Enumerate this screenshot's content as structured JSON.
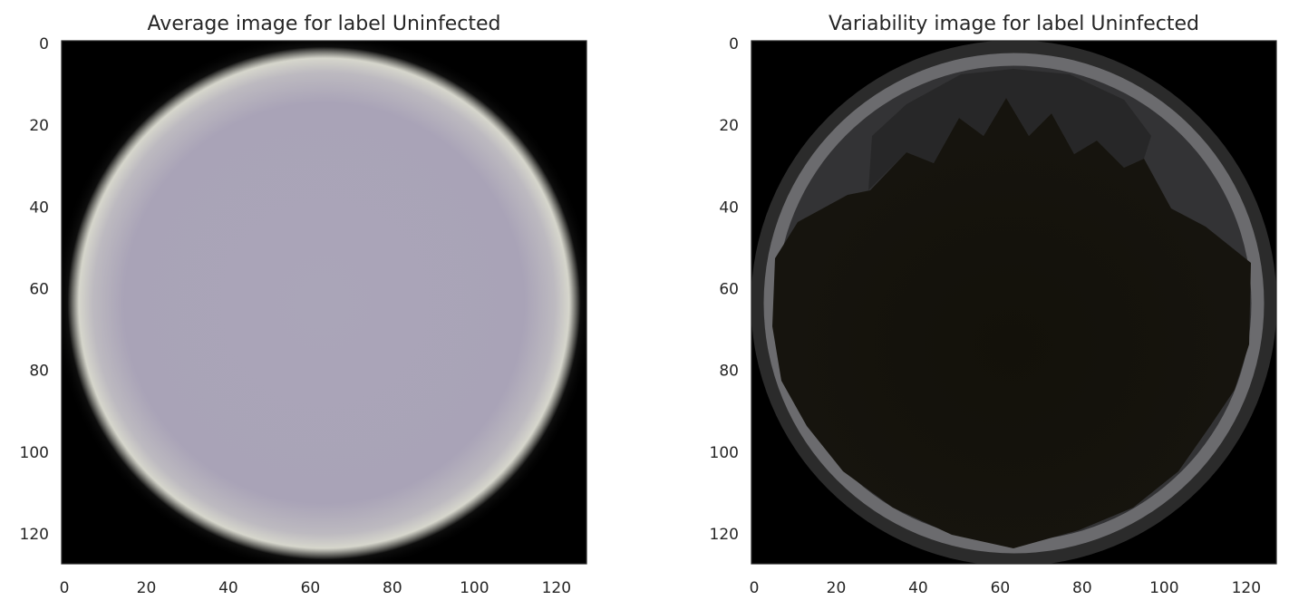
{
  "chart_data": [
    {
      "type": "heatmap",
      "title": "Average image for label Uninfected",
      "xlabel": "",
      "ylabel": "",
      "image_size": [
        128,
        128
      ],
      "xlim": [
        0,
        128
      ],
      "ylim": [
        128,
        0
      ],
      "x_ticks": [
        "0",
        "20",
        "40",
        "60",
        "80",
        "100",
        "120"
      ],
      "y_ticks": [
        "0",
        "20",
        "40",
        "60",
        "80",
        "100",
        "120"
      ],
      "grid": false,
      "content": {
        "shape": "disc",
        "center": [
          64,
          64
        ],
        "radius": 62,
        "fill_color": "#a8a2b6",
        "edge_color": "#d4d4cc",
        "background_color": "#000000"
      }
    },
    {
      "type": "heatmap",
      "title": "Variability image for label Uninfected",
      "xlabel": "",
      "ylabel": "",
      "image_size": [
        128,
        128
      ],
      "xlim": [
        0,
        128
      ],
      "ylim": [
        128,
        0
      ],
      "x_ticks": [
        "0",
        "20",
        "40",
        "60",
        "80",
        "100",
        "120"
      ],
      "y_ticks": [
        "0",
        "20",
        "40",
        "60",
        "80",
        "100",
        "120"
      ],
      "grid": false,
      "content": {
        "shape": "ring",
        "center": [
          64,
          64
        ],
        "radius": 62,
        "ring_color": "#6e6e72",
        "inner_color": "#13110a",
        "shadow_color": "#2a2a2a",
        "background_color": "#000000"
      }
    }
  ]
}
